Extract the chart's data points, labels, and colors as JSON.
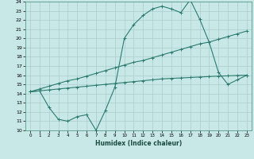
{
  "xlabel": "Humidex (Indice chaleur)",
  "ylabel": "",
  "bg_color": "#c8e8e8",
  "line_color": "#2d7b6e",
  "grid_color": "#aacccc",
  "xlim": [
    -0.5,
    23.5
  ],
  "ylim": [
    10,
    24
  ],
  "xticks": [
    0,
    1,
    2,
    3,
    4,
    5,
    6,
    7,
    8,
    9,
    10,
    11,
    12,
    13,
    14,
    15,
    16,
    17,
    18,
    19,
    20,
    21,
    22,
    23
  ],
  "yticks": [
    10,
    11,
    12,
    13,
    14,
    15,
    16,
    17,
    18,
    19,
    20,
    21,
    22,
    23,
    24
  ],
  "line1_x": [
    0,
    1,
    2,
    3,
    4,
    5,
    6,
    7,
    8,
    9,
    10,
    11,
    12,
    13,
    14,
    15,
    16,
    17,
    18,
    19,
    20,
    21,
    22,
    23
  ],
  "line1_y": [
    14.2,
    14.3,
    12.5,
    11.2,
    11.0,
    11.5,
    11.7,
    10.0,
    12.2,
    14.7,
    20.0,
    21.5,
    22.5,
    23.2,
    23.5,
    23.2,
    22.8,
    24.2,
    22.1,
    19.6,
    16.3,
    15.0,
    15.5,
    16.0
  ],
  "line2_x": [
    0,
    1,
    2,
    3,
    4,
    5,
    6,
    7,
    8,
    9,
    10,
    11,
    12,
    13,
    14,
    15,
    16,
    17,
    18,
    19,
    20,
    21,
    22,
    23
  ],
  "line2_y": [
    14.2,
    14.5,
    14.8,
    15.1,
    15.4,
    15.6,
    15.9,
    16.2,
    16.5,
    16.8,
    17.1,
    17.4,
    17.6,
    17.9,
    18.2,
    18.5,
    18.8,
    19.1,
    19.4,
    19.6,
    19.9,
    20.2,
    20.5,
    20.8
  ],
  "line3_x": [
    0,
    1,
    2,
    3,
    4,
    5,
    6,
    7,
    8,
    9,
    10,
    11,
    12,
    13,
    14,
    15,
    16,
    17,
    18,
    19,
    20,
    21,
    22,
    23
  ],
  "line3_y": [
    14.2,
    14.3,
    14.4,
    14.5,
    14.6,
    14.7,
    14.8,
    14.9,
    15.0,
    15.1,
    15.2,
    15.3,
    15.4,
    15.5,
    15.6,
    15.65,
    15.7,
    15.75,
    15.8,
    15.85,
    15.9,
    15.93,
    15.97,
    16.0
  ],
  "figsize": [
    3.2,
    2.0
  ],
  "dpi": 100
}
